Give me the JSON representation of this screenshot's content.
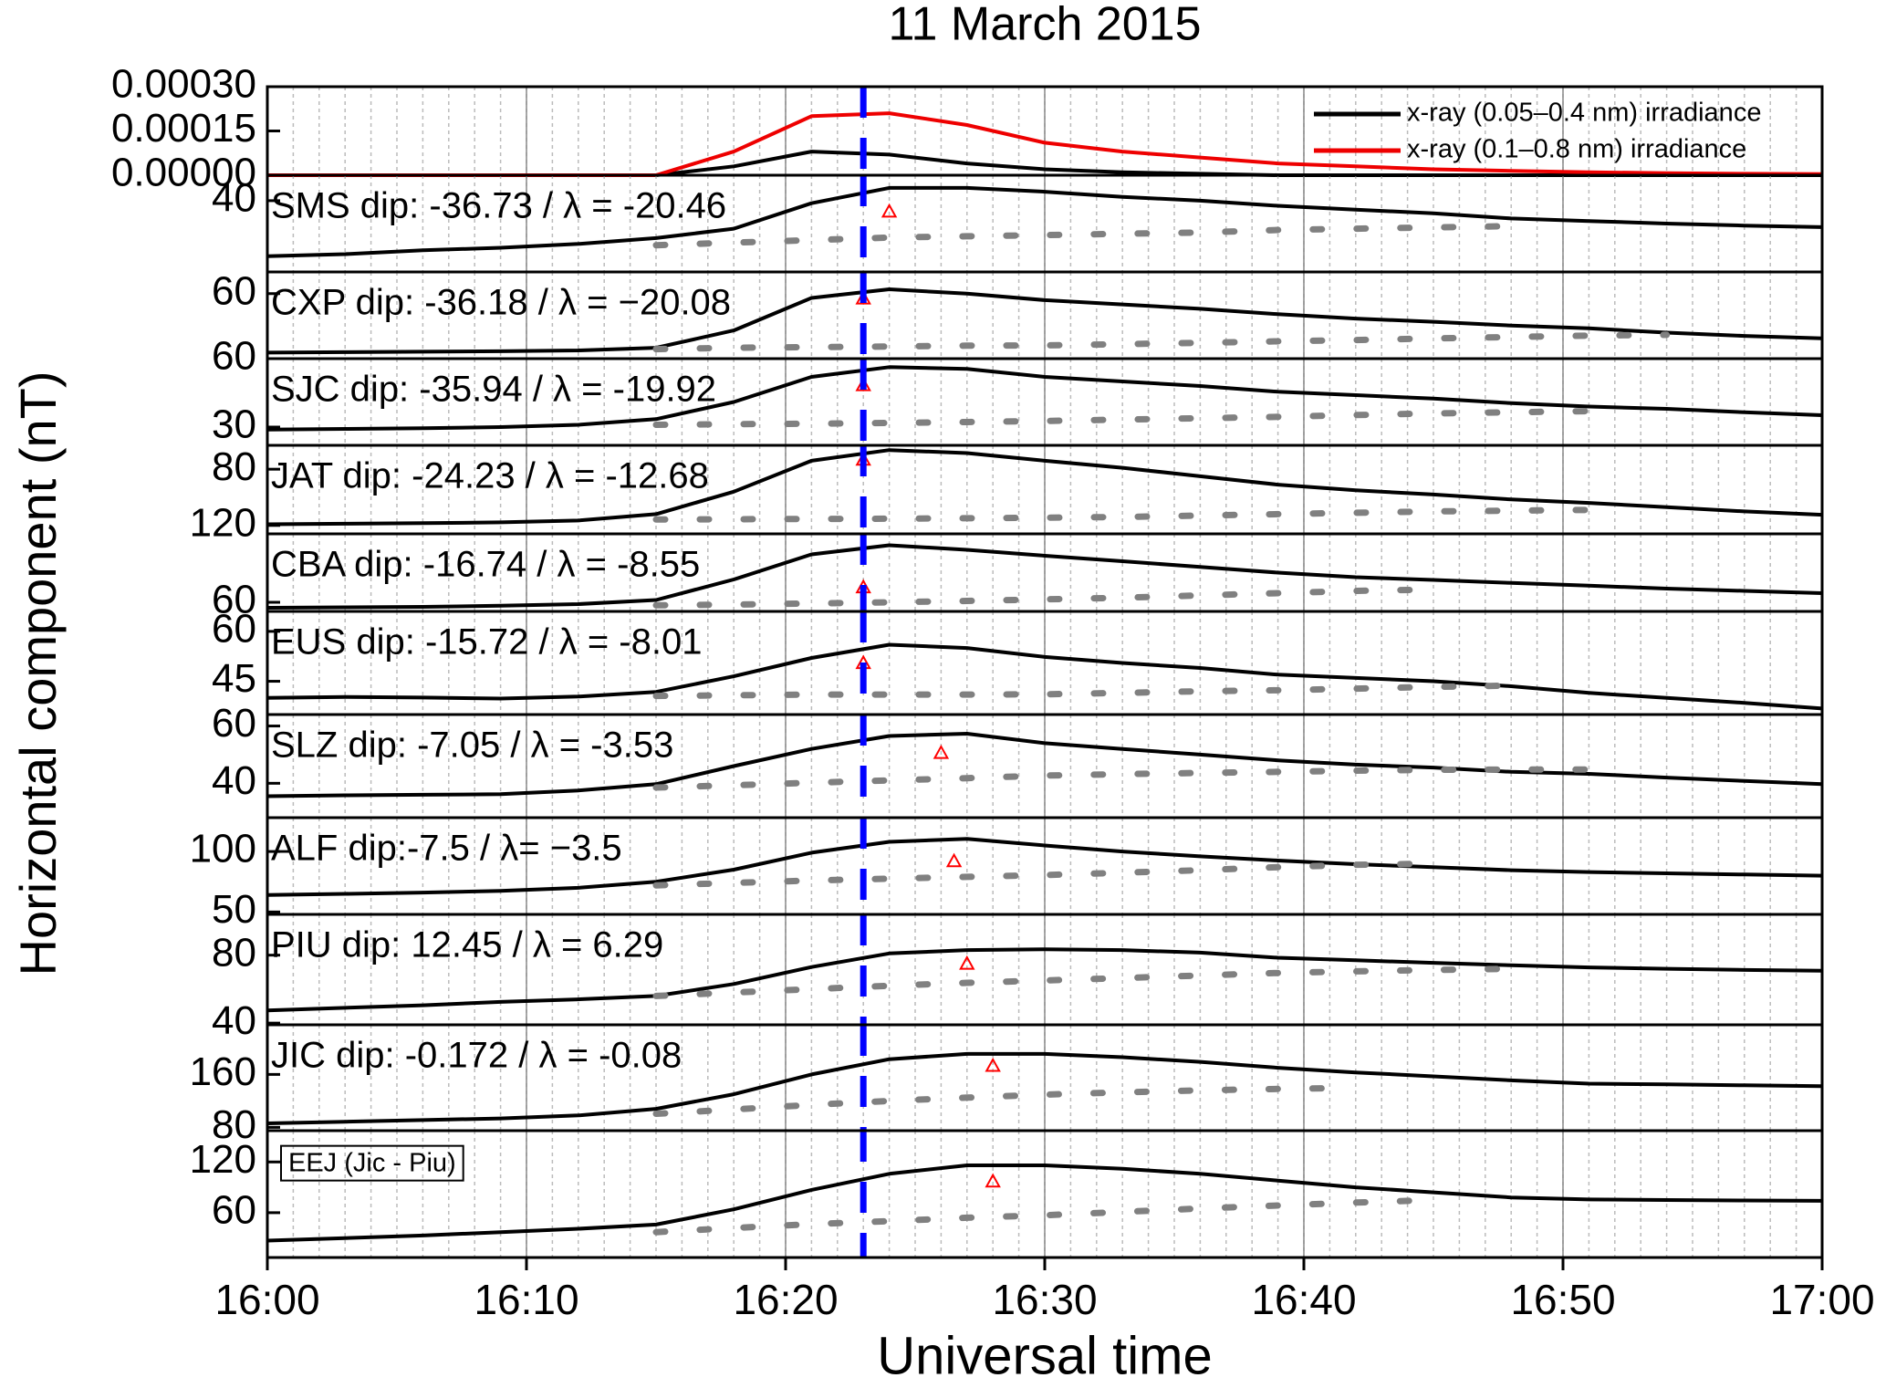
{
  "figure": {
    "title": "11 March 2015",
    "xlabel": "Universal time",
    "ylabel": "Horizontal component (nT)",
    "x": [
      0,
      3,
      6,
      9,
      12,
      15,
      18,
      21,
      24,
      27,
      30,
      33,
      36,
      39,
      42,
      45,
      48,
      51,
      54,
      57,
      60
    ],
    "xlim": [
      0,
      60
    ],
    "xticks": [
      {
        "value": 0,
        "label": "16:00"
      },
      {
        "value": 10,
        "label": "16:10"
      },
      {
        "value": 20,
        "label": "16:20"
      },
      {
        "value": 30,
        "label": "16:30"
      },
      {
        "value": 40,
        "label": "16:40"
      },
      {
        "value": 50,
        "label": "16:50"
      },
      {
        "value": 60,
        "label": "17:00"
      }
    ],
    "grid": true,
    "event_line": {
      "x": 23,
      "color": "#0000ff"
    }
  },
  "chart_data": [
    {
      "type": "line",
      "ylim": [
        0,
        0.0003
      ],
      "yticks": [
        {
          "value": 0.0003,
          "label": "0.00030"
        },
        {
          "value": 0.00015,
          "label": "0.00015"
        },
        {
          "value": 0,
          "label": "0.00000"
        }
      ],
      "legend": "upper right",
      "series": [
        {
          "name": "x-ray (0.05–0.4 nm) irradiance",
          "color": "#000000",
          "values": [
            0,
            0,
            0,
            0,
            0,
            0,
            3e-05,
            8e-05,
            7e-05,
            4e-05,
            2e-05,
            1e-05,
            5e-06,
            0,
            0,
            0,
            0,
            0,
            0,
            0,
            0
          ]
        },
        {
          "name": "x-ray (0.1–0.8 nm) irradiance",
          "color": "#ee0000",
          "values": [
            0,
            0,
            0,
            0,
            0,
            0,
            8e-05,
            0.0002,
            0.00021,
            0.00017,
            0.00011,
            8e-05,
            6e-05,
            4e-05,
            3e-05,
            2e-05,
            1.5e-05,
            1e-05,
            7e-06,
            5e-06,
            4e-06
          ]
        }
      ]
    },
    {
      "type": "line",
      "label": "SMS dip: -36.73 / λ = -20.46",
      "ylim": [
        12,
        50
      ],
      "yticks": [
        40
      ],
      "series": [
        {
          "color": "#000000",
          "values": [
            18.2,
            19,
            20.5,
            21.5,
            23,
            25.3,
            29,
            39,
            45,
            45,
            43.5,
            41.5,
            40,
            38,
            36.5,
            35,
            33,
            32,
            31,
            30.2,
            29.6
          ]
        },
        {
          "color": "#808080",
          "style": "dashed",
          "values": [
            null,
            null,
            null,
            null,
            null,
            22.5,
            23.5,
            24.5,
            25.5,
            26,
            26.5,
            27,
            27.5,
            28.5,
            29,
            29.5,
            30,
            null,
            null,
            null,
            null
          ]
        }
      ],
      "peak_marker": {
        "x": 24,
        "y": 35.75,
        "color": "#ff0000"
      }
    },
    {
      "type": "line",
      "label": "CXP dip: -36.18 / λ = −20.08",
      "ylim": [
        30,
        70
      ],
      "yticks": [
        60
      ],
      "series": [
        {
          "color": "#000000",
          "values": [
            32.8,
            33,
            33.2,
            33.4,
            33.8,
            35,
            43,
            58,
            62,
            60,
            57,
            55,
            53,
            50.5,
            48.5,
            47,
            45.3,
            44,
            42,
            40.5,
            39.4
          ]
        },
        {
          "color": "#808080",
          "style": "dashed",
          "values": [
            null,
            null,
            null,
            null,
            null,
            34.4,
            35,
            35.3,
            35.6,
            36,
            36.1,
            36.7,
            37.3,
            38,
            38.6,
            39.3,
            40,
            40.6,
            41,
            null,
            null
          ]
        }
      ],
      "peak_marker": {
        "x": 23,
        "y": 57.8,
        "color": "#ff0000"
      }
    },
    {
      "type": "line",
      "label": "SJC dip: -35.94 / λ = -19.92",
      "ylim": [
        22,
        60
      ],
      "yticks": [
        60,
        30
      ],
      "series": [
        {
          "color": "#000000",
          "values": [
            28.9,
            29.2,
            29.5,
            30,
            31,
            33.5,
            41,
            52,
            56.3,
            55.5,
            52,
            50,
            48,
            45.5,
            44,
            42.5,
            40.5,
            39,
            38,
            36.5,
            35.2
          ]
        },
        {
          "color": "#808080",
          "style": "dashed",
          "values": [
            null,
            null,
            null,
            null,
            null,
            31,
            31.3,
            31.5,
            31.8,
            32.2,
            32.7,
            33.3,
            33.9,
            34.5,
            35.3,
            36,
            36.5,
            37,
            null,
            null,
            null
          ]
        }
      ],
      "peak_marker": {
        "x": 23,
        "y": 48.4,
        "color": "#ff0000"
      }
    },
    {
      "type": "line",
      "label": "JAT dip: -24.23 / λ = -12.68",
      "ylim": [
        126,
        63
      ],
      "yticks": [
        80,
        120
      ],
      "series": [
        {
          "color": "#000000",
          "values": [
            119.2,
            118.8,
            118.4,
            117.8,
            116.5,
            112,
            96,
            74,
            66.4,
            68.5,
            74,
            79,
            85,
            91,
            95,
            98,
            101.5,
            104,
            107,
            110,
            112.4
          ]
        },
        {
          "color": "#808080",
          "style": "dashed",
          "values": [
            null,
            null,
            null,
            null,
            null,
            115.8,
            115.6,
            115.4,
            115.2,
            114.9,
            114.5,
            114,
            113,
            112,
            111,
            110,
            109.5,
            109,
            null,
            null,
            null
          ]
        }
      ],
      "peak_marker": {
        "x": 23,
        "y": 73.2,
        "color": "#ff0000"
      }
    },
    {
      "type": "line",
      "label": "CBA dip: -16.74 / λ = -8.55",
      "ylim": [
        56,
        90
      ],
      "yticks": [
        60
      ],
      "series": [
        {
          "color": "#000000",
          "values": [
            57.6,
            57.8,
            58,
            58.5,
            59.2,
            61,
            70,
            81,
            85,
            83,
            80.4,
            78,
            75.5,
            73,
            71,
            69.8,
            68.5,
            67.3,
            66,
            65,
            64
          ]
        },
        {
          "color": "#808080",
          "style": "dashed",
          "values": [
            null,
            null,
            null,
            null,
            null,
            58.7,
            59,
            59.5,
            60,
            60.6,
            61.3,
            62,
            63,
            64,
            65,
            65.6,
            null,
            null,
            null,
            null,
            null
          ]
        }
      ],
      "peak_marker": {
        "x": 23,
        "y": 66.6,
        "color": "#ff0000"
      }
    },
    {
      "type": "line",
      "label": "EUS dip: -15.72 / λ = -8.01",
      "ylim": [
        35,
        66
      ],
      "yticks": [
        60,
        45
      ],
      "series": [
        {
          "color": "#000000",
          "values": [
            40,
            40.3,
            40.1,
            39.8,
            40.4,
            41.8,
            46.5,
            52,
            56,
            55,
            52.3,
            50.5,
            49,
            47,
            46,
            45,
            43.5,
            41.5,
            40,
            38.5,
            36.8
          ]
        },
        {
          "color": "#808080",
          "style": "dashed",
          "values": [
            null,
            null,
            null,
            null,
            null,
            40.6,
            40.8,
            41,
            41,
            41,
            41.1,
            41.5,
            42,
            42.3,
            42.8,
            43.3,
            43.7,
            null,
            null,
            null,
            null
          ]
        }
      ],
      "peak_marker": {
        "x": 23,
        "y": 50.5,
        "color": "#ff0000"
      }
    },
    {
      "type": "line",
      "label": "SLZ dip: -7.05 / λ = -3.53",
      "ylim": [
        28,
        64
      ],
      "yticks": [
        60,
        40
      ],
      "series": [
        {
          "color": "#000000",
          "values": [
            35.5,
            35.8,
            36,
            36.2,
            37.5,
            39.7,
            46,
            52,
            56.5,
            57.3,
            54,
            52,
            50,
            48,
            46.5,
            45.5,
            44,
            43.3,
            42,
            40.8,
            39.7
          ]
        },
        {
          "color": "#808080",
          "style": "dashed",
          "values": [
            null,
            null,
            null,
            null,
            null,
            38.5,
            39.3,
            40.2,
            41,
            41.8,
            42.7,
            43.2,
            43.6,
            44,
            44.4,
            44.7,
            44.8,
            44.8,
            null,
            null,
            null
          ]
        }
      ],
      "peak_marker": {
        "x": 26,
        "y": 50.6,
        "color": "#ff0000"
      }
    },
    {
      "type": "line",
      "label": "ALF dip:-7.5 / λ= −3.5",
      "ylim": [
        48,
        128
      ],
      "yticks": [
        100,
        50
      ],
      "series": [
        {
          "color": "#000000",
          "values": [
            64,
            65,
            66,
            67.5,
            70,
            75,
            85,
            99,
            108,
            110.5,
            105,
            100,
            96,
            92.5,
            89.5,
            87,
            84.5,
            83,
            82,
            81,
            80
          ]
        },
        {
          "color": "#808080",
          "style": "dashed",
          "values": [
            null,
            null,
            null,
            null,
            null,
            72,
            74,
            76,
            77.5,
            79,
            80.5,
            82.5,
            84.5,
            87,
            89,
            90,
            null,
            null,
            null,
            null,
            null
          ]
        }
      ],
      "peak_marker": {
        "x": 26.5,
        "y": 92,
        "color": "#ff0000"
      }
    },
    {
      "type": "line",
      "label": "PIU dip: 12.45 / λ = 6.29",
      "ylim": [
        39,
        104
      ],
      "yticks": [
        80,
        40
      ],
      "series": [
        {
          "color": "#000000",
          "values": [
            47.5,
            49,
            50.5,
            52.5,
            54,
            56,
            63,
            73,
            81,
            83,
            83.5,
            83,
            81.5,
            78.5,
            77,
            75.5,
            74,
            72.8,
            72,
            71.3,
            70.8
          ]
        },
        {
          "color": "#808080",
          "style": "dashed",
          "values": [
            null,
            null,
            null,
            null,
            null,
            56,
            58,
            60,
            62,
            63.7,
            65.1,
            66.5,
            68,
            69.5,
            70.5,
            71.3,
            72,
            null,
            null,
            null,
            null
          ]
        }
      ],
      "peak_marker": {
        "x": 27,
        "y": 75,
        "color": "#ff0000"
      }
    },
    {
      "type": "line",
      "label": "JIC dip: -0.172 / λ = -0.08",
      "ylim": [
        75,
        235
      ],
      "yticks": [
        160,
        80
      ],
      "series": [
        {
          "color": "#000000",
          "values": [
            86,
            88.5,
            91,
            93.5,
            98,
            108,
            130,
            160,
            183,
            191,
            191,
            186,
            179,
            170,
            163,
            157,
            151,
            146,
            145,
            143.5,
            142.3
          ]
        },
        {
          "color": "#808080",
          "style": "dashed",
          "values": [
            null,
            null,
            null,
            null,
            null,
            100.5,
            107,
            114,
            120,
            125,
            129.5,
            133,
            136,
            138,
            139.5,
            null,
            null,
            null,
            null,
            null,
            null
          ]
        }
      ],
      "peak_marker": {
        "x": 28,
        "y": 173,
        "color": "#ff0000"
      }
    },
    {
      "type": "line",
      "label": "EEJ (Jic - Piu)",
      "label_boxed": true,
      "ylim": [
        7,
        157
      ],
      "yticks": [
        120,
        60
      ],
      "series": [
        {
          "color": "#000000",
          "values": [
            27,
            30,
            33,
            37,
            41,
            46,
            64,
            87,
            106,
            116,
            116,
            112,
            106,
            98,
            90,
            84,
            78,
            75.6,
            75,
            74.5,
            74
          ]
        },
        {
          "color": "#808080",
          "style": "dashed",
          "values": [
            null,
            null,
            null,
            null,
            null,
            37,
            42,
            46.5,
            50,
            54,
            57,
            61,
            65,
            68.5,
            72,
            75,
            null,
            null,
            null,
            null,
            null
          ]
        }
      ],
      "peak_marker": {
        "x": 28,
        "y": 97,
        "color": "#ff0000"
      }
    }
  ]
}
